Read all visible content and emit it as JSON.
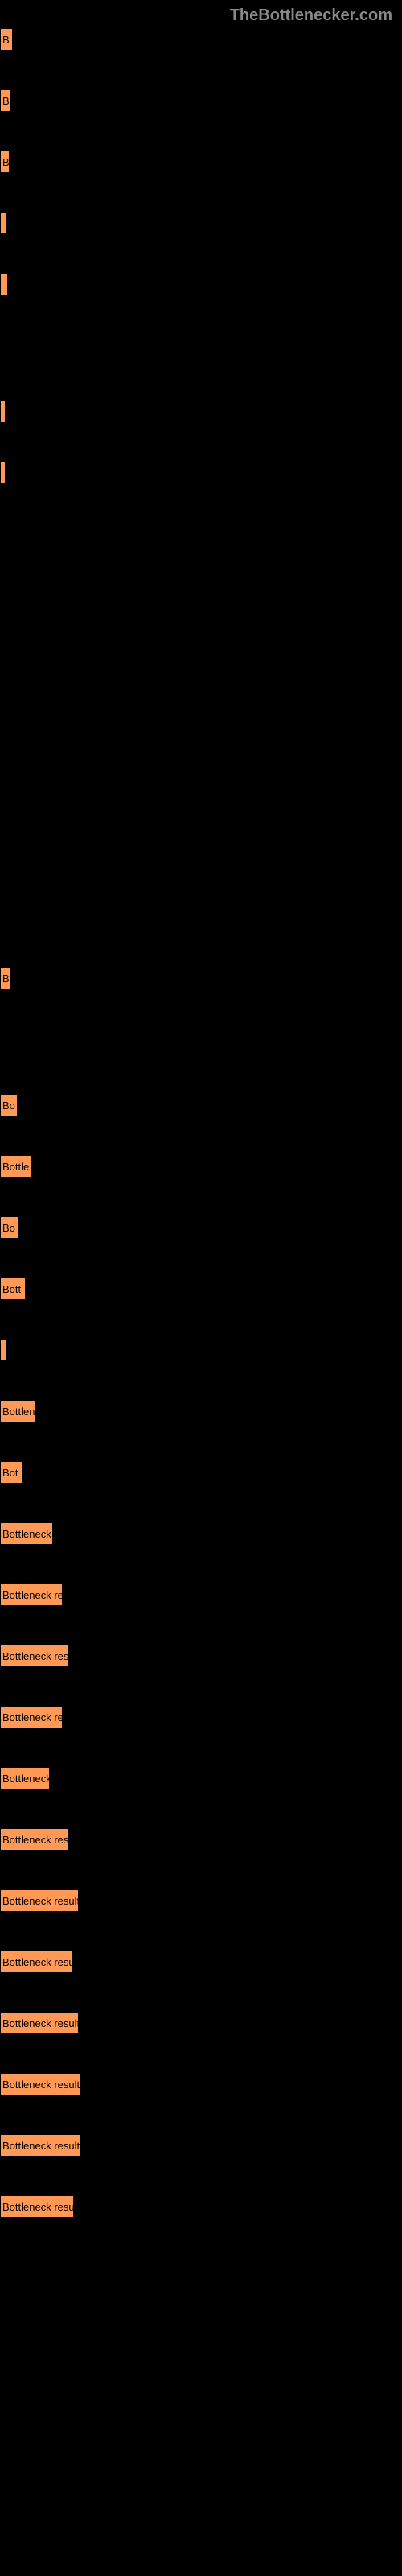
{
  "header": {
    "title": "TheBottlenecker.com"
  },
  "chart": {
    "type": "bar",
    "bar_color": "#ff9955",
    "background_color": "#000000",
    "header_color": "#888888",
    "label_color": "#000000",
    "label_fontsize": 13,
    "header_fontsize": 20,
    "bars": [
      {
        "label": "B",
        "width": 12
      },
      {
        "label": "B",
        "width": 10
      },
      {
        "label": "B",
        "width": 8
      },
      {
        "label": "",
        "width": 4
      },
      {
        "label": "",
        "width": 6
      },
      {
        "label": "",
        "width": 3
      },
      {
        "label": "",
        "width": 3
      },
      {
        "label": "B",
        "width": 10
      },
      {
        "label": "Bo",
        "width": 18
      },
      {
        "label": "Bottle",
        "width": 36
      },
      {
        "label": "Bo",
        "width": 20
      },
      {
        "label": "Bott",
        "width": 28
      },
      {
        "label": "",
        "width": 4
      },
      {
        "label": "Bottlen",
        "width": 40
      },
      {
        "label": "Bot",
        "width": 24
      },
      {
        "label": "Bottleneck",
        "width": 62
      },
      {
        "label": "Bottleneck re",
        "width": 74
      },
      {
        "label": "Bottleneck res",
        "width": 82
      },
      {
        "label": "Bottleneck re",
        "width": 74
      },
      {
        "label": "Bottleneck",
        "width": 58
      },
      {
        "label": "Bottleneck res",
        "width": 82
      },
      {
        "label": "Bottleneck result",
        "width": 94
      },
      {
        "label": "Bottleneck resu",
        "width": 86
      },
      {
        "label": "Bottleneck result",
        "width": 94
      },
      {
        "label": "Bottleneck result",
        "width": 96
      },
      {
        "label": "Bottleneck result",
        "width": 96
      },
      {
        "label": "Bottleneck resu",
        "width": 88
      }
    ]
  }
}
